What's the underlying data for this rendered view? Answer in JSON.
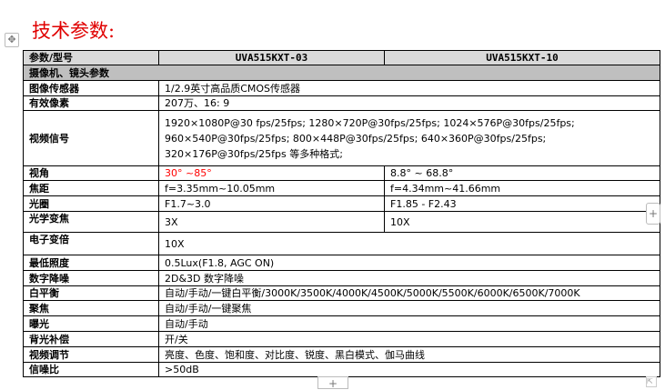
{
  "title": "技术参数:",
  "header": {
    "label": "参数/型号",
    "model_a": "UVA515KXT-03",
    "model_b": "UVA515KXT-10"
  },
  "section": "摄像机、镜头参数",
  "rows": {
    "sensor": {
      "k": "图像传感器",
      "v": "1/2.9英寸高品质CMOS传感器"
    },
    "pixels": {
      "k": "有效像素",
      "v": "207万、16: 9"
    },
    "video": {
      "k": "视频信号",
      "lines": [
        "1920×1080P@30 fps/25fps; 1280×720P@30fps/25fps; 1024×576P@30fps/25fps;",
        "960×540P@30fps/25fps; 800×448P@30fps/25fps; 640×360P@30fps/25fps;",
        "320×176P@30fps/25fps 等多种格式;"
      ]
    },
    "angle": {
      "k": "视角",
      "a": "30° ~85°",
      "b": "8.8° ~ 68.8°"
    },
    "focal": {
      "k": "焦距",
      "a": "f=3.35mm~10.05mm",
      "b": "f=4.34mm~41.66mm"
    },
    "aperture": {
      "k": "光圈",
      "a": "F1.7~3.0",
      "b": "F1.85 - F2.43"
    },
    "optzoom": {
      "k": "光学变焦",
      "a": "3X",
      "b": "10X"
    },
    "ezoom": {
      "k": "电子变倍",
      "v": "10X"
    },
    "illum": {
      "k": "最低照度",
      "v": "0.5Lux(F1.8, AGC ON)"
    },
    "dnr": {
      "k": "数字降噪",
      "v": "2D&3D 数字降噪"
    },
    "wb": {
      "k": "白平衡",
      "v": "自动/手动/一键白平衡/3000K/3500K/4000K/4500K/5000K/5500K/6000K/6500K/7000K"
    },
    "focus": {
      "k": "聚焦",
      "v": "自动/手动/一键聚焦"
    },
    "exposure": {
      "k": "曝光",
      "v": "自动/手动"
    },
    "blc": {
      "k": "背光补偿",
      "v": "开/关"
    },
    "adjust": {
      "k": "视频调节",
      "v": "亮度、色度、饱和度、对比度、锐度、黑白模式、伽马曲线"
    },
    "snr": {
      "k": "信噪比",
      "v": ">50dB"
    }
  },
  "colors": {
    "title": "#e00000",
    "highlight": "#ff0000",
    "header_bg": "#d9d9d9",
    "section_bg": "#bfbfbf"
  },
  "icons": {
    "move": "move-handle-icon",
    "add": "plus-icon",
    "resize": "resize-icon"
  }
}
